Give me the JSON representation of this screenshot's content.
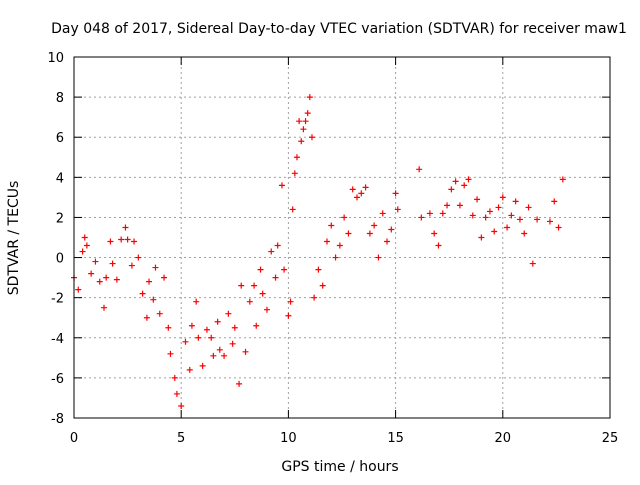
{
  "chart_data": {
    "type": "scatter",
    "title": "Day 048 of 2017, Sidereal Day-to-day VTEC variation (SDTVAR) for receiver maw1",
    "xlabel": "GPS time / hours",
    "ylabel": "SDTVAR / TECUs",
    "xlim": [
      0,
      25
    ],
    "ylim": [
      -8,
      10
    ],
    "x_ticks": [
      0,
      5,
      10,
      15,
      20,
      25
    ],
    "y_ticks": [
      -8,
      -6,
      -4,
      -2,
      0,
      2,
      4,
      6,
      8,
      10
    ],
    "x_tick_labels": [
      "0",
      "5",
      "10",
      "15",
      "20",
      "25"
    ],
    "y_tick_labels": [
      "-8",
      "-6",
      "-4",
      "-2",
      "0",
      "2",
      "4",
      "6",
      "8",
      "10"
    ],
    "grid": true,
    "marker": "+",
    "marker_color": "#ff0000",
    "series": [
      {
        "name": "SDTVAR",
        "x": [
          0.0,
          0.2,
          0.4,
          0.5,
          0.6,
          0.8,
          1.0,
          1.2,
          1.4,
          1.5,
          1.7,
          1.8,
          2.0,
          2.2,
          2.4,
          2.5,
          2.7,
          2.8,
          3.0,
          3.2,
          3.4,
          3.5,
          3.7,
          3.8,
          4.0,
          4.2,
          4.4,
          4.5,
          4.7,
          4.8,
          5.0,
          5.2,
          5.4,
          5.5,
          5.7,
          5.8,
          6.0,
          6.2,
          6.4,
          6.5,
          6.7,
          6.8,
          7.0,
          7.2,
          7.4,
          7.5,
          7.7,
          7.8,
          8.0,
          8.2,
          8.4,
          8.5,
          8.7,
          8.8,
          9.0,
          9.2,
          9.4,
          9.5,
          9.7,
          9.8,
          10.0,
          10.1,
          10.2,
          10.3,
          10.4,
          10.5,
          10.6,
          10.7,
          10.8,
          10.9,
          11.0,
          11.1,
          11.2,
          11.4,
          11.6,
          11.8,
          12.0,
          12.2,
          12.4,
          12.6,
          12.8,
          13.0,
          13.2,
          13.4,
          13.6,
          13.8,
          14.0,
          14.2,
          14.4,
          14.6,
          14.8,
          15.0,
          15.1,
          16.1,
          16.2,
          16.6,
          16.8,
          17.0,
          17.2,
          17.4,
          17.6,
          17.8,
          18.0,
          18.2,
          18.4,
          18.6,
          18.8,
          19.0,
          19.2,
          19.4,
          19.6,
          19.8,
          20.0,
          20.2,
          20.4,
          20.6,
          20.8,
          21.0,
          21.2,
          21.4,
          21.6,
          22.2,
          22.4,
          22.6,
          22.8
        ],
        "y": [
          -1.0,
          -1.6,
          0.3,
          1.0,
          0.6,
          -0.8,
          -0.2,
          -1.2,
          -2.5,
          -1.0,
          0.8,
          -0.3,
          -1.1,
          0.9,
          1.5,
          0.9,
          -0.4,
          0.8,
          0.0,
          -1.8,
          -3.0,
          -1.2,
          -2.1,
          -0.5,
          -2.8,
          -1.0,
          -3.5,
          -4.8,
          -6.0,
          -6.8,
          -7.4,
          -4.2,
          -5.6,
          -3.4,
          -2.2,
          -4.0,
          -5.4,
          -3.6,
          -4.0,
          -4.9,
          -3.2,
          -4.6,
          -4.9,
          -2.8,
          -4.3,
          -3.5,
          -6.3,
          -1.4,
          -4.7,
          -2.2,
          -1.4,
          -3.4,
          -0.6,
          -1.8,
          -2.6,
          0.3,
          -1.0,
          0.6,
          3.6,
          -0.6,
          -2.9,
          -2.2,
          2.4,
          4.2,
          5.0,
          6.8,
          5.8,
          6.4,
          6.8,
          7.2,
          8.0,
          6.0,
          -2.0,
          -0.6,
          -1.4,
          0.8,
          1.6,
          0.0,
          0.6,
          2.0,
          1.2,
          3.4,
          3.0,
          3.2,
          3.5,
          1.2,
          1.6,
          0.0,
          2.2,
          0.8,
          1.4,
          3.2,
          2.4,
          4.4,
          2.0,
          2.2,
          1.2,
          0.6,
          2.2,
          2.6,
          3.4,
          3.8,
          2.6,
          3.6,
          3.9,
          2.1,
          2.9,
          1.0,
          2.0,
          2.3,
          1.3,
          2.5,
          3.0,
          1.5,
          2.1,
          2.8,
          1.9,
          1.2,
          2.5,
          -0.3,
          1.9,
          1.8,
          2.8,
          1.5,
          3.9
        ]
      }
    ]
  }
}
